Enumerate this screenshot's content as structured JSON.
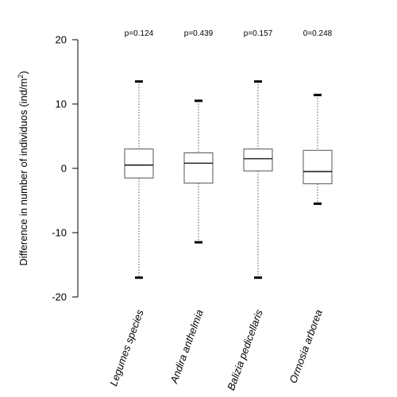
{
  "chart_data": {
    "type": "box",
    "ylabel_main": "Difference in number of individuos (ind/m",
    "ylabel_sup": "2",
    "ylabel_close": ")",
    "ylim": [
      -20,
      20
    ],
    "yticks": [
      -20,
      -10,
      0,
      10,
      20
    ],
    "categories": [
      "Legumes species",
      "Andira anthelmia",
      "Balizia pedicellaris",
      "Ormosia arborea"
    ],
    "pvalues": [
      "p=0.124",
      "p=0.439",
      "p=0.157",
      "0=0.248"
    ],
    "boxes": [
      {
        "min": -17.0,
        "q1": -1.5,
        "median": 0.5,
        "q3": 3.0,
        "max": 13.5
      },
      {
        "min": -11.5,
        "q1": -2.3,
        "median": 0.8,
        "q3": 2.4,
        "max": 10.5
      },
      {
        "min": -17.0,
        "q1": -0.4,
        "median": 1.5,
        "q3": 3.0,
        "max": 13.5
      },
      {
        "min": -5.5,
        "q1": -2.4,
        "median": -0.5,
        "q3": 2.8,
        "max": 11.4
      }
    ]
  }
}
